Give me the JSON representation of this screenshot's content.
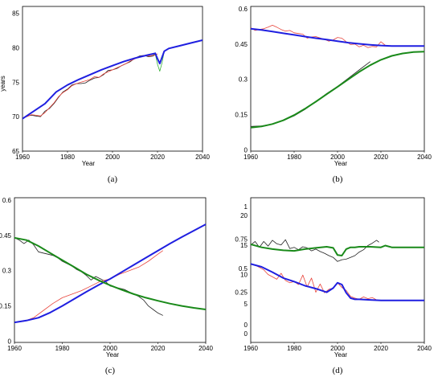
{
  "colors": {
    "blue": "#1f1fe0",
    "red": "#e8453c",
    "black": "#222222",
    "green": "#1a8a1a",
    "lightgreen": "#35b035"
  },
  "chart_data": [
    {
      "id": "a",
      "type": "line",
      "panel_label": "(a)",
      "xlabel": "Year",
      "ylabel": "years",
      "xlim": [
        1960,
        2040
      ],
      "ylim": [
        65,
        86
      ],
      "xticks": [
        "1960",
        "1980",
        "2000",
        "2020",
        "2040"
      ],
      "yticks": [
        {
          "v": 65,
          "t": "65"
        },
        {
          "v": 70,
          "t": "70"
        },
        {
          "v": 75,
          "t": "75"
        },
        {
          "v": 80,
          "t": "80"
        },
        {
          "v": 85,
          "t": "85"
        }
      ],
      "series": [
        {
          "color": "black",
          "width": 0.8,
          "x": [
            1960,
            1962,
            1964,
            1966,
            1968,
            1970,
            1972,
            1974,
            1976,
            1978,
            1980,
            1982,
            1984,
            1986,
            1988,
            1990,
            1992,
            1994,
            1996,
            1998,
            2000,
            2002,
            2004,
            2006,
            2008,
            2010,
            2012,
            2014,
            2016,
            2018,
            2019
          ],
          "y": [
            69.7,
            70.1,
            70.2,
            70.1,
            70.0,
            70.8,
            71.2,
            71.9,
            72.8,
            73.6,
            74.0,
            74.6,
            74.8,
            74.8,
            74.9,
            75.3,
            75.6,
            75.7,
            76.1,
            76.7,
            76.8,
            77.0,
            77.4,
            77.7,
            78.0,
            78.5,
            78.8,
            78.9,
            78.7,
            78.8,
            79.0
          ]
        },
        {
          "color": "red",
          "width": 0.8,
          "x": [
            1960,
            1962,
            1964,
            1966,
            1968,
            1970,
            1972,
            1974,
            1976,
            1978,
            1980,
            1982,
            1984,
            1986,
            1988,
            1990,
            1992,
            1994,
            1996,
            1998,
            2000,
            2002,
            2004,
            2006,
            2008,
            2010,
            2012,
            2014,
            2016,
            2018,
            2020
          ],
          "y": [
            69.8,
            70.0,
            70.3,
            70.2,
            70.1,
            70.6,
            71.3,
            72.0,
            72.9,
            73.5,
            73.9,
            74.5,
            74.8,
            75.0,
            75.2,
            75.4,
            75.8,
            75.7,
            76.2,
            76.5,
            76.8,
            77.1,
            77.4,
            77.7,
            78.1,
            78.4,
            78.7,
            78.9,
            78.8,
            78.9,
            79.1
          ]
        },
        {
          "color": "lightgreen",
          "width": 0.8,
          "x": [
            2018,
            2019,
            2020,
            2021,
            2022,
            2023
          ],
          "y": [
            79.0,
            79.1,
            77.6,
            76.6,
            77.8,
            79.5
          ]
        },
        {
          "color": "blue",
          "width": 2,
          "x": [
            1960,
            1965,
            1970,
            1975,
            1980,
            1985,
            1990,
            1995,
            2000,
            2005,
            2010,
            2015,
            2019,
            2020,
            2021,
            2022,
            2023,
            2025,
            2030,
            2035,
            2040
          ],
          "y": [
            69.7,
            70.8,
            71.9,
            73.6,
            74.6,
            75.4,
            76.1,
            76.8,
            77.4,
            78.0,
            78.5,
            78.9,
            79.2,
            78.4,
            77.7,
            78.6,
            79.5,
            79.9,
            80.3,
            80.7,
            81.1
          ]
        }
      ]
    },
    {
      "id": "b",
      "type": "line",
      "panel_label": "(b)",
      "xlabel": "Year",
      "ylabel": "",
      "xlim": [
        1960,
        2040
      ],
      "ylim": [
        -0.005,
        0.61
      ],
      "xticks": [
        "1960",
        "1980",
        "2000",
        "2020",
        "2040"
      ],
      "yticks": [
        {
          "v": 0,
          "t": "0"
        },
        {
          "v": 0.15,
          "t": "0.15"
        },
        {
          "v": 0.3,
          "t": "0.3"
        },
        {
          "v": 0.45,
          "t": "0.45"
        },
        {
          "v": 0.6,
          "t": "0.6"
        }
      ],
      "series": [
        {
          "color": "red",
          "width": 0.8,
          "x": [
            1960,
            1962,
            1964,
            1966,
            1968,
            1970,
            1972,
            1974,
            1976,
            1978,
            1980,
            1982,
            1984,
            1986,
            1988,
            1990,
            1992,
            1994,
            1996,
            1998,
            2000,
            2002,
            2004,
            2006,
            2008,
            2010,
            2012,
            2014,
            2016,
            2018,
            2020,
            2022
          ],
          "y": [
            0.52,
            0.508,
            0.512,
            0.515,
            0.522,
            0.53,
            0.522,
            0.512,
            0.505,
            0.508,
            0.498,
            0.495,
            0.492,
            0.475,
            0.48,
            0.482,
            0.476,
            0.47,
            0.462,
            0.468,
            0.478,
            0.475,
            0.46,
            0.448,
            0.45,
            0.438,
            0.445,
            0.435,
            0.44,
            0.438,
            0.46,
            0.445
          ]
        },
        {
          "color": "black",
          "width": 0.8,
          "x": [
            1960,
            1965,
            1970,
            1975,
            1980,
            1985,
            1990,
            1995,
            2000,
            2005,
            2010,
            2015
          ],
          "y": [
            0.1,
            0.102,
            0.11,
            0.125,
            0.145,
            0.172,
            0.205,
            0.24,
            0.27,
            0.305,
            0.34,
            0.375
          ]
        },
        {
          "color": "blue",
          "width": 2,
          "x": [
            1960,
            1965,
            1970,
            1975,
            1980,
            1985,
            1990,
            1995,
            2000,
            2005,
            2010,
            2015,
            2020,
            2025,
            2030,
            2035,
            2040
          ],
          "y": [
            0.515,
            0.51,
            0.503,
            0.496,
            0.489,
            0.482,
            0.475,
            0.469,
            0.462,
            0.456,
            0.451,
            0.447,
            0.444,
            0.442,
            0.442,
            0.442,
            0.442
          ]
        },
        {
          "color": "green",
          "width": 2,
          "x": [
            1960,
            1965,
            1970,
            1975,
            1980,
            1985,
            1990,
            1995,
            2000,
            2005,
            2010,
            2015,
            2020,
            2025,
            2030,
            2035,
            2040
          ],
          "y": [
            0.095,
            0.1,
            0.11,
            0.126,
            0.148,
            0.175,
            0.205,
            0.237,
            0.268,
            0.3,
            0.332,
            0.36,
            0.383,
            0.4,
            0.41,
            0.416,
            0.418
          ]
        }
      ]
    },
    {
      "id": "c",
      "type": "line",
      "panel_label": "(c)",
      "xlabel": "Year",
      "ylabel": "",
      "xlim": [
        1960,
        2040
      ],
      "ylim": [
        -0.005,
        0.61
      ],
      "xticks": [
        "1960",
        "1980",
        "2000",
        "2020",
        "2040"
      ],
      "yticks": [
        {
          "v": 0,
          "t": "0"
        },
        {
          "v": 0.15,
          "t": "0.15"
        },
        {
          "v": 0.3,
          "t": "0.3"
        },
        {
          "v": 0.45,
          "t": "0.45"
        },
        {
          "v": 0.6,
          "t": "0.6"
        }
      ],
      "series": [
        {
          "color": "black",
          "width": 0.8,
          "x": [
            1960,
            1962,
            1964,
            1966,
            1968,
            1970,
            1972,
            1974,
            1976,
            1978,
            1980,
            1982,
            1984,
            1986,
            1988,
            1990,
            1992,
            1994,
            1996,
            1998,
            2000,
            2002,
            2004,
            2006,
            2008,
            2010,
            2012,
            2014,
            2016,
            2018,
            2020,
            2022
          ],
          "y": [
            0.44,
            0.43,
            0.415,
            0.43,
            0.41,
            0.38,
            0.375,
            0.37,
            0.365,
            0.355,
            0.34,
            0.33,
            0.32,
            0.305,
            0.295,
            0.28,
            0.26,
            0.275,
            0.265,
            0.255,
            0.235,
            0.23,
            0.225,
            0.22,
            0.21,
            0.2,
            0.19,
            0.175,
            0.15,
            0.135,
            0.12,
            0.11
          ]
        },
        {
          "color": "red",
          "width": 0.8,
          "x": [
            1960,
            1964,
            1968,
            1972,
            1976,
            1980,
            1984,
            1988,
            1992,
            1996,
            2000,
            2004,
            2008,
            2012,
            2016,
            2020,
            2022
          ],
          "y": [
            0.08,
            0.085,
            0.1,
            0.13,
            0.16,
            0.185,
            0.2,
            0.215,
            0.235,
            0.255,
            0.265,
            0.285,
            0.3,
            0.315,
            0.34,
            0.37,
            0.385
          ]
        },
        {
          "color": "blue",
          "width": 2,
          "x": [
            1960,
            1965,
            1970,
            1975,
            1980,
            1985,
            1990,
            1995,
            2000,
            2005,
            2010,
            2015,
            2020,
            2025,
            2030,
            2035,
            2040
          ],
          "y": [
            0.08,
            0.088,
            0.1,
            0.122,
            0.15,
            0.18,
            0.21,
            0.238,
            0.265,
            0.295,
            0.325,
            0.355,
            0.385,
            0.415,
            0.443,
            0.47,
            0.497
          ]
        },
        {
          "color": "green",
          "width": 2,
          "x": [
            1960,
            1965,
            1970,
            1975,
            1980,
            1985,
            1990,
            1995,
            2000,
            2005,
            2010,
            2015,
            2020,
            2025,
            2030,
            2035,
            2040
          ],
          "y": [
            0.44,
            0.43,
            0.405,
            0.375,
            0.345,
            0.315,
            0.285,
            0.26,
            0.238,
            0.218,
            0.2,
            0.185,
            0.172,
            0.16,
            0.15,
            0.142,
            0.135
          ]
        }
      ]
    },
    {
      "id": "d",
      "type": "line",
      "panel_label": "(d)",
      "xlabel": "Year",
      "ylabel": "",
      "xlim": [
        1960,
        2040
      ],
      "ylim": [
        -1.5,
        23
      ],
      "xticks": [
        "1960",
        "1980",
        "2000",
        "2020",
        "2040"
      ],
      "yticks": [
        {
          "v": 0,
          "t": "0"
        },
        {
          "v": 1.5,
          "t": "0"
        },
        {
          "v": 5,
          "t": "5"
        },
        {
          "v": 7,
          "t": "0.25"
        },
        {
          "v": 10,
          "t": "10"
        },
        {
          "v": 11,
          "t": "0.5"
        },
        {
          "v": 15,
          "t": "15"
        },
        {
          "v": 16,
          "t": "0.75"
        },
        {
          "v": 20,
          "t": "20"
        },
        {
          "v": 21.5,
          "t": "1"
        }
      ],
      "series": [
        {
          "color": "black",
          "width": 0.8,
          "x": [
            1960,
            1962,
            1964,
            1966,
            1968,
            1970,
            1972,
            1974,
            1976,
            1978,
            1980,
            1982,
            1984,
            1986,
            1988,
            1990,
            1992,
            1994,
            1996,
            1998,
            2000,
            2002,
            2004,
            2006,
            2008,
            2010,
            2012,
            2014,
            2016,
            2018,
            2019
          ],
          "y": [
            15.0,
            15.6,
            14.6,
            15.6,
            14.8,
            15.8,
            15.2,
            15.0,
            15.9,
            14.4,
            14.6,
            14.2,
            14.7,
            14.5,
            14.0,
            14.3,
            13.9,
            13.6,
            13.2,
            12.9,
            12.2,
            12.5,
            12.6,
            12.9,
            13.2,
            13.8,
            14.2,
            14.9,
            15.3,
            15.8,
            15.5
          ]
        },
        {
          "color": "red",
          "width": 0.8,
          "x": [
            1960,
            1962,
            1964,
            1966,
            1968,
            1970,
            1972,
            1974,
            1976,
            1978,
            1980,
            1982,
            1984,
            1986,
            1988,
            1990,
            1992,
            1994,
            1996,
            1998,
            2000,
            2002,
            2004,
            2006,
            2008,
            2010,
            2012,
            2014,
            2016,
            2018
          ],
          "y": [
            11.8,
            11.6,
            11.2,
            10.8,
            10.0,
            9.6,
            9.2,
            10.2,
            9.0,
            8.6,
            8.8,
            8.3,
            9.9,
            7.9,
            9.4,
            7.0,
            8.4,
            6.9,
            7.5,
            7.7,
            8.6,
            7.8,
            7.3,
            6.3,
            6.0,
            5.8,
            6.2,
            5.9,
            6.1,
            5.7
          ]
        },
        {
          "color": "blue",
          "width": 2,
          "x": [
            1960,
            1965,
            1970,
            1975,
            1980,
            1985,
            1990,
            1995,
            1998,
            2000,
            2002,
            2004,
            2006,
            2008,
            2010,
            2015,
            2020,
            2025,
            2030,
            2035,
            2040
          ],
          "y": [
            11.8,
            11.3,
            10.4,
            9.4,
            8.8,
            8.1,
            7.6,
            7.0,
            7.7,
            8.6,
            8.3,
            6.9,
            6.0,
            5.8,
            5.8,
            5.7,
            5.6,
            5.6,
            5.6,
            5.6,
            5.6
          ]
        },
        {
          "color": "green",
          "width": 2,
          "x": [
            1960,
            1965,
            1970,
            1975,
            1980,
            1985,
            1990,
            1995,
            1998,
            2000,
            2002,
            2004,
            2006,
            2008,
            2010,
            2015,
            2020,
            2022,
            2025,
            2030,
            2035,
            2040
          ],
          "y": [
            15.1,
            14.6,
            14.3,
            14.1,
            14.0,
            14.3,
            14.5,
            14.7,
            14.5,
            13.3,
            13.2,
            14.3,
            14.6,
            14.6,
            14.7,
            14.7,
            14.6,
            14.9,
            14.6,
            14.6,
            14.6,
            14.6
          ]
        }
      ]
    }
  ]
}
